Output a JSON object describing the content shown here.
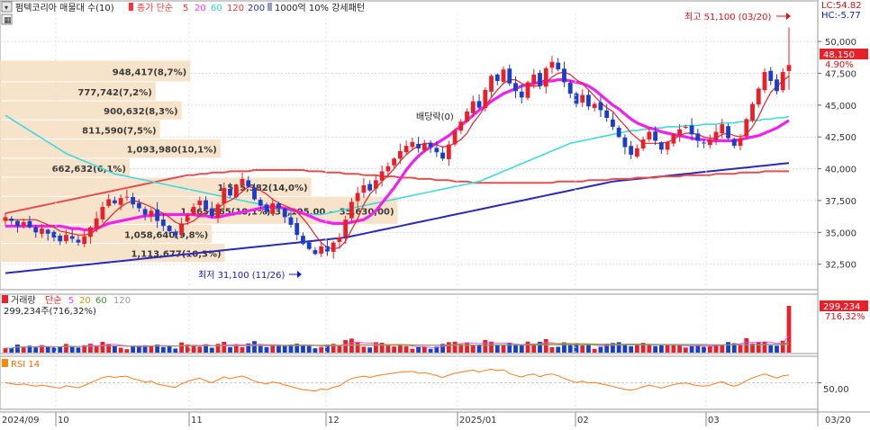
{
  "header": {
    "stock_label": "펌텍코리아 매물대 수(10)",
    "price_type": "종가 단순",
    "ma_periods": [
      "5",
      "20",
      "60",
      "120",
      "200"
    ],
    "ma_colors": [
      "#ff3333",
      "#ff33ff",
      "#33cccc",
      "#ff3333",
      "#3333cc"
    ],
    "extra_label": "1000억 10% 강세패턴"
  },
  "right_axis": {
    "lc_label": "LC:54.82",
    "hc_label": "HC:-5.77",
    "current_price": "48,150",
    "current_change": "4.90%"
  },
  "annotations": {
    "high_label": "최고 51,100 (03/20)",
    "low_label": "최저 31,100 (11/26)",
    "dividend_label": "배당락(0)"
  },
  "volume_panel": {
    "title": "거래량",
    "price_type": "단순",
    "ma_periods": [
      "5",
      "20",
      "60",
      "120"
    ],
    "ma_colors": [
      "#ff33ff",
      "#cc9900",
      "#339933",
      "#999999"
    ],
    "current_volume_text": "299,234주(716,32%)",
    "axis_volume": "299,234",
    "axis_pct": "716,32%"
  },
  "rsi_panel": {
    "title": "RSI 14",
    "level_label": "50,00"
  },
  "chart_data": {
    "type": "candlestick",
    "price_axis": {
      "ylim": [
        30500,
        52200
      ],
      "ticks": [
        "50,000",
        "47,500",
        "45,000",
        "42,500",
        "40,000",
        "37,500",
        "35,000",
        "32,500"
      ],
      "tick_values": [
        50000,
        47500,
        45000,
        42500,
        40000,
        37500,
        35000,
        32500
      ]
    },
    "x_axis_labels": [
      "2024/09",
      "10",
      "11",
      "12",
      "2025/01",
      "02",
      "03",
      "03/20"
    ],
    "volume_profile": [
      {
        "label": "948,417(8,7%)",
        "price_low": 46800,
        "price_high": 48500,
        "width_frac": 0.44
      },
      {
        "label": "777,742(7,2%)",
        "price_low": 45300,
        "price_high": 46800,
        "width_frac": 0.36
      },
      {
        "label": "900,632(8,3%)",
        "price_low": 43800,
        "price_high": 45300,
        "width_frac": 0.42
      },
      {
        "label": "811,590(7,5%)",
        "price_low": 42300,
        "price_high": 43800,
        "width_frac": 0.37
      },
      {
        "label": "1,093,980(10,1%)",
        "price_low": 40800,
        "price_high": 42300,
        "width_frac": 0.51
      },
      {
        "label": "662,632(6,1%)",
        "price_low": 39300,
        "price_high": 40800,
        "width_frac": 0.3
      },
      {
        "label": "1,515,382(14,0%)",
        "price_low": 37800,
        "price_high": 39300,
        "width_frac": 0.72
      },
      {
        "label": "1,965,365(18,1%)(37,195,00 ~ 35,630,00)",
        "price_low": 35600,
        "price_high": 37800,
        "width_frac": 0.92
      },
      {
        "label": "1,058,640(9,8%)",
        "price_low": 34100,
        "price_high": 35600,
        "width_frac": 0.49
      },
      {
        "label": "1,113,677(10,3%)",
        "price_low": 32600,
        "price_high": 34100,
        "width_frac": 0.52
      }
    ],
    "closes": [
      36200,
      35900,
      35500,
      35800,
      35400,
      35000,
      35300,
      34900,
      34600,
      34300,
      34800,
      34500,
      34200,
      34700,
      35400,
      36100,
      37000,
      37600,
      37300,
      37700,
      37800,
      37200,
      36900,
      36400,
      36700,
      35900,
      35500,
      35100,
      34800,
      35700,
      36400,
      37000,
      37500,
      36800,
      36300,
      37200,
      38500,
      37900,
      38700,
      39200,
      38600,
      37600,
      37100,
      36600,
      37300,
      36900,
      36200,
      35600,
      34800,
      34100,
      33700,
      33300,
      33900,
      33500,
      34200,
      34600,
      36000,
      37400,
      38100,
      38700,
      38300,
      39100,
      39800,
      40200,
      40800,
      41400,
      41800,
      42100,
      41600,
      42000,
      41700,
      41300,
      40800,
      41900,
      43000,
      43700,
      44500,
      45300,
      44800,
      46200,
      47300,
      46900,
      47800,
      46700,
      46100,
      45600,
      46800,
      47400,
      46500,
      47900,
      48400,
      47800,
      46800,
      45900,
      45100,
      45800,
      44900,
      45100,
      44600,
      44000,
      43300,
      42500,
      41700,
      41100,
      41600,
      42300,
      42900,
      42200,
      41500,
      42100,
      42700,
      43100,
      43300,
      42700,
      42200,
      42000,
      42300,
      42900,
      43500,
      42400,
      41800,
      42400,
      43900,
      45100,
      46300,
      47600,
      46900,
      46100,
      47600,
      48150
    ],
    "series": {
      "ma5": [
        36000,
        36000,
        36000,
        36000,
        36000,
        36000,
        35800,
        35600,
        35400,
        35100,
        35000,
        34900,
        34800,
        34800,
        34900,
        35200,
        35600,
        36100,
        36600,
        37000,
        37300,
        37500,
        37400,
        37200,
        37000,
        36700,
        36500,
        36200,
        35800,
        35600,
        35700,
        35900,
        36300,
        36600,
        36700,
        36900,
        37300,
        37500,
        37800,
        38200,
        38600,
        38500,
        38300,
        38000,
        37600,
        37300,
        37100,
        36900,
        36600,
        36100,
        35500,
        34800,
        34200,
        33800,
        33700,
        33800,
        34300,
        35200,
        36100,
        37200,
        38000,
        38500,
        39000,
        39500,
        40000,
        40600,
        41100,
        41500,
        41800,
        42000,
        42000,
        41900,
        41700,
        41800,
        42000,
        42300,
        42800,
        43600,
        44200,
        44900,
        45600,
        46200,
        46700,
        47000,
        47000,
        46700,
        46500,
        46500,
        46500,
        46800,
        47200,
        47500,
        47600,
        47400,
        47000,
        46700,
        46200,
        45700,
        45200,
        44800,
        44500,
        43900,
        43400,
        42800,
        42400,
        42000,
        42000,
        42000,
        42000,
        42100,
        42300,
        42600,
        42800,
        42800,
        42700,
        42500,
        42400,
        42400,
        42700,
        42800,
        42600,
        42500,
        42700,
        43300,
        44100,
        45100,
        46000,
        46500,
        46900,
        47300
      ],
      "ma20": [
        35500,
        35500,
        35500,
        35500,
        35500,
        35500,
        35500,
        35500,
        35500,
        35500,
        35400,
        35300,
        35300,
        35200,
        35200,
        35300,
        35500,
        35700,
        35800,
        35900,
        36000,
        36100,
        36200,
        36300,
        36300,
        36400,
        36400,
        36400,
        36400,
        36400,
        36400,
        36400,
        36300,
        36300,
        36200,
        36200,
        36300,
        36400,
        36500,
        36600,
        36700,
        36800,
        36900,
        37000,
        37000,
        37000,
        36900,
        36800,
        36700,
        36500,
        36300,
        36100,
        35900,
        35800,
        35700,
        35700,
        35700,
        35800,
        35900,
        36000,
        36300,
        36700,
        37300,
        37900,
        38500,
        39200,
        39900,
        40500,
        41000,
        41400,
        41700,
        42000,
        42300,
        42600,
        43000,
        43400,
        43800,
        44200,
        44600,
        44900,
        45300,
        45600,
        45900,
        46100,
        46300,
        46500,
        46600,
        46700,
        46800,
        46900,
        46900,
        47000,
        47000,
        46900,
        46800,
        46700,
        46500,
        46200,
        45800,
        45400,
        45000,
        44700,
        44300,
        43900,
        43600,
        43400,
        43200,
        43100,
        42900,
        42800,
        42700,
        42600,
        42500,
        42400,
        42300,
        42300,
        42200,
        42200,
        42200,
        42200,
        42200,
        42300,
        42400,
        42500,
        42600,
        42800,
        43000,
        43200,
        43500,
        43800
      ],
      "ma60": [
        44200,
        43900,
        43600,
        43300,
        43000,
        42700,
        42400,
        42100,
        41800,
        41500,
        41200,
        41000,
        40800,
        40600,
        40400,
        40200,
        40000,
        39800,
        39600,
        39500,
        39400,
        39300,
        39200,
        39100,
        39000,
        38900,
        38800,
        38700,
        38600,
        38500,
        38400,
        38300,
        38200,
        38100,
        38000,
        37900,
        37800,
        37700,
        37600,
        37500,
        37400,
        37300,
        37200,
        37100,
        37000,
        36900,
        36800,
        36700,
        36600,
        36500,
        36400,
        36400,
        36400,
        36500,
        36600,
        36700,
        36800,
        36900,
        37000,
        37100,
        37200,
        37300,
        37400,
        37500,
        37600,
        37700,
        37800,
        37900,
        38000,
        38100,
        38200,
        38300,
        38400,
        38500,
        38600,
        38700,
        38800,
        38900,
        39000,
        39200,
        39400,
        39600,
        39800,
        40000,
        40200,
        40400,
        40600,
        40800,
        41000,
        41200,
        41400,
        41600,
        41800,
        42000,
        42100,
        42200,
        42300,
        42400,
        42500,
        42600,
        42700,
        42800,
        42900,
        43000,
        43000,
        43100,
        43100,
        43200,
        43200,
        43300,
        43300,
        43300,
        43400,
        43400,
        43400,
        43500,
        43500,
        43500,
        43600,
        43600,
        43600,
        43700,
        43700,
        43800,
        43800,
        43900,
        43900,
        44000,
        44000,
        44100
      ],
      "ma120": [
        36500,
        36600,
        36700,
        36800,
        36900,
        37000,
        37100,
        37200,
        37300,
        37400,
        37500,
        37600,
        37700,
        37800,
        37900,
        38000,
        38100,
        38200,
        38300,
        38400,
        38500,
        38600,
        38700,
        38800,
        38900,
        39000,
        39100,
        39200,
        39300,
        39400,
        39500,
        39500,
        39600,
        39600,
        39700,
        39700,
        39700,
        39800,
        39800,
        39800,
        39800,
        39900,
        39900,
        39900,
        39900,
        39900,
        39900,
        39900,
        39900,
        39900,
        39800,
        39800,
        39800,
        39700,
        39700,
        39700,
        39600,
        39600,
        39600,
        39500,
        39500,
        39500,
        39400,
        39400,
        39400,
        39300,
        39300,
        39300,
        39200,
        39200,
        39200,
        39100,
        39100,
        39100,
        39000,
        39000,
        39000,
        38900,
        38900,
        38900,
        38900,
        38900,
        38900,
        38900,
        38900,
        38900,
        38900,
        38900,
        38900,
        38900,
        38900,
        39000,
        39000,
        39000,
        39000,
        39000,
        39100,
        39100,
        39100,
        39100,
        39200,
        39200,
        39200,
        39200,
        39300,
        39300,
        39300,
        39300,
        39400,
        39400,
        39400,
        39400,
        39500,
        39500,
        39500,
        39500,
        39500,
        39600,
        39600,
        39600,
        39600,
        39700,
        39700,
        39700,
        39700,
        39800,
        39800,
        39800,
        39800,
        39800
      ],
      "ma200": [
        31800,
        31850,
        31900,
        31950,
        32000,
        32050,
        32100,
        32150,
        32200,
        32250,
        32300,
        32350,
        32400,
        32450,
        32500,
        32550,
        32600,
        32650,
        32700,
        32750,
        32800,
        32850,
        32900,
        32950,
        33000,
        33050,
        33100,
        33150,
        33200,
        33250,
        33300,
        33350,
        33400,
        33450,
        33500,
        33550,
        33600,
        33650,
        33700,
        33750,
        33800,
        33850,
        33900,
        33950,
        34000,
        34050,
        34100,
        34150,
        34200,
        34250,
        34300,
        34350,
        34400,
        34450,
        34500,
        34550,
        34600,
        34700,
        34800,
        34900,
        35000,
        35100,
        35200,
        35300,
        35400,
        35500,
        35600,
        35700,
        35800,
        35900,
        36000,
        36100,
        36200,
        36300,
        36400,
        36500,
        36600,
        36700,
        36800,
        36900,
        37000,
        37100,
        37200,
        37300,
        37400,
        37500,
        37600,
        37700,
        37800,
        37900,
        38000,
        38100,
        38200,
        38300,
        38400,
        38500,
        38600,
        38700,
        38800,
        38900,
        39000,
        39050,
        39100,
        39150,
        39200,
        39250,
        39300,
        39350,
        39400,
        39450,
        39500,
        39550,
        39600,
        39650,
        39700,
        39750,
        39800,
        39850,
        39900,
        39950,
        40000,
        40050,
        40100,
        40150,
        40200,
        40250,
        40300,
        40350,
        40400,
        40450
      ]
    },
    "last_high": 51100,
    "last_low": 46200,
    "volume_ylim": [
      0,
      299234
    ],
    "volume_last": 299234,
    "rsi_ylim": [
      0,
      100
    ],
    "rsi_level": 50
  }
}
